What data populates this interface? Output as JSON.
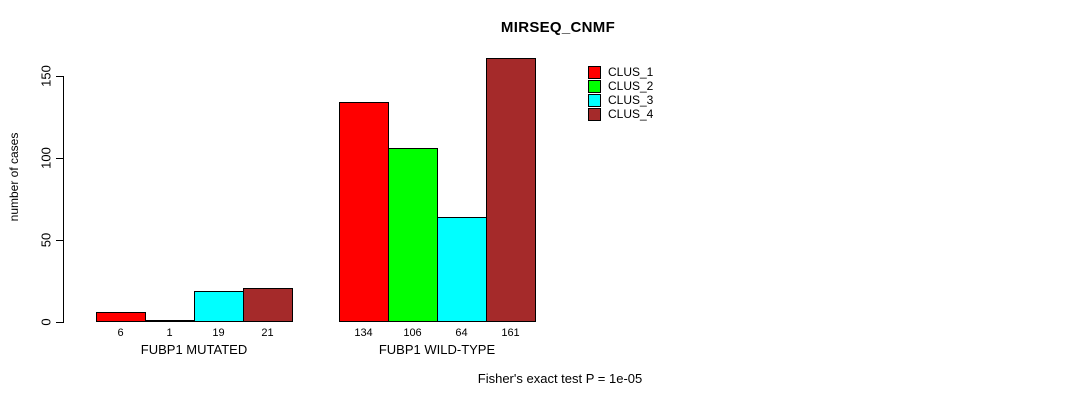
{
  "title": "MIRSEQ_CNMF",
  "annotation": "Fisher's exact test P = 1e-05",
  "colors": {
    "clus1": "#FF0000",
    "clus2": "#00FF00",
    "clus3": "#00FFFF",
    "clus4": "#A52A2A"
  },
  "chart_data": {
    "type": "bar",
    "title": "MIRSEQ_CNMF",
    "xlabel": "",
    "ylabel": "number of cases",
    "annotation": "Fisher's exact test P = 1e-05",
    "ylim": [
      0,
      150
    ],
    "yticks": [
      0,
      50,
      100,
      150
    ],
    "grid": false,
    "legend_position": "top-right",
    "bar_value_labels_shown": true,
    "categories": [
      "FUBP1 MUTATED",
      "FUBP1 WILD-TYPE"
    ],
    "series": [
      {
        "name": "CLUS_1",
        "color": "#FF0000",
        "values": [
          6,
          134
        ]
      },
      {
        "name": "CLUS_2",
        "color": "#00FF00",
        "values": [
          1,
          106
        ]
      },
      {
        "name": "CLUS_3",
        "color": "#00FFFF",
        "values": [
          19,
          64
        ]
      },
      {
        "name": "CLUS_4",
        "color": "#A52A2A",
        "values": [
          21,
          161
        ]
      }
    ],
    "groups": [
      {
        "label": "FUBP1 MUTATED",
        "values": [
          6,
          1,
          19,
          21
        ]
      },
      {
        "label": "FUBP1 WILD-TYPE",
        "values": [
          134,
          106,
          64,
          161
        ]
      }
    ]
  }
}
